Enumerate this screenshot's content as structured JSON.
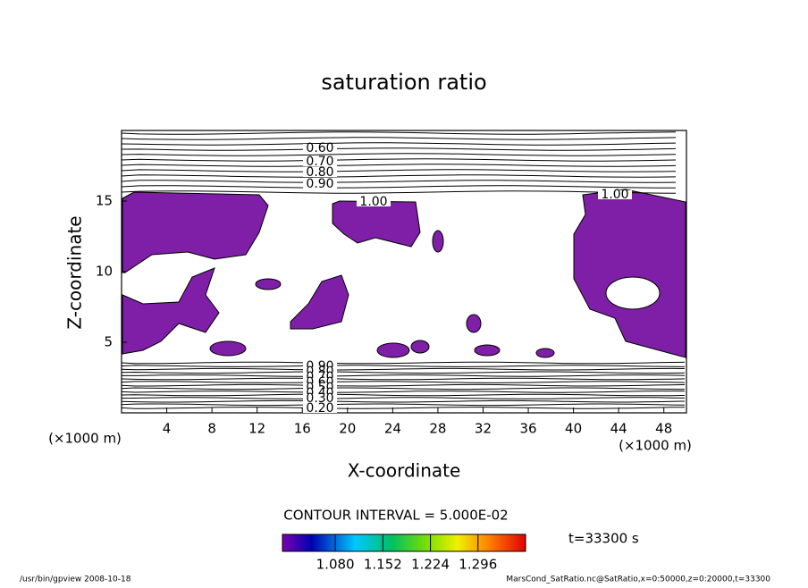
{
  "chart_data": {
    "type": "contour",
    "title": "saturation ratio",
    "x_label": "X-coordinate",
    "y_label": "Z-coordinate",
    "x_unit": "(×1000 m)",
    "y_unit": "(×1000 m)",
    "xlim": [
      0,
      50
    ],
    "ylim": [
      0,
      20
    ],
    "xticks": [
      4,
      8,
      12,
      16,
      20,
      24,
      28,
      32,
      36,
      40,
      44,
      48
    ],
    "yticks": [
      5,
      10,
      15
    ],
    "fill_color": "#7f1fa8",
    "contour_interval": "CONTOUR INTERVAL = 5.000E-02",
    "contour_labels": [
      {
        "value": 0.6,
        "label": "0.60"
      },
      {
        "value": 0.7,
        "label": "0.70"
      },
      {
        "value": 0.8,
        "label": "0.80"
      },
      {
        "value": 0.9,
        "label": "0.90"
      },
      {
        "value": 1.0,
        "label": "1.00"
      },
      {
        "value": 1.0,
        "label": "1.00"
      },
      {
        "value": 0.9,
        "label": "0.90"
      },
      {
        "value": 0.8,
        "label": "0.80"
      },
      {
        "value": 0.7,
        "label": "0.70"
      },
      {
        "value": 0.6,
        "label": "0.60"
      },
      {
        "value": 0.5,
        "label": "0.50"
      },
      {
        "value": 0.4,
        "label": "0.40"
      },
      {
        "value": 0.3,
        "label": "0.30"
      },
      {
        "value": 0.2,
        "label": "0.20"
      }
    ],
    "colorbar": {
      "lim": [
        1.0,
        1.368
      ],
      "ticks": [
        {
          "value": 1.08,
          "label": "1.080"
        },
        {
          "value": 1.152,
          "label": "1.152"
        },
        {
          "value": 1.224,
          "label": "1.224"
        },
        {
          "value": 1.296,
          "label": "1.296"
        }
      ]
    },
    "time_label": "t=33300 s",
    "footer_left": "/usr/bin/gpview   2008-10-18",
    "footer_right": "MarsCond_SatRatio.nc@SatRatio,x=0:50000,z=0:20000,t=33300"
  }
}
